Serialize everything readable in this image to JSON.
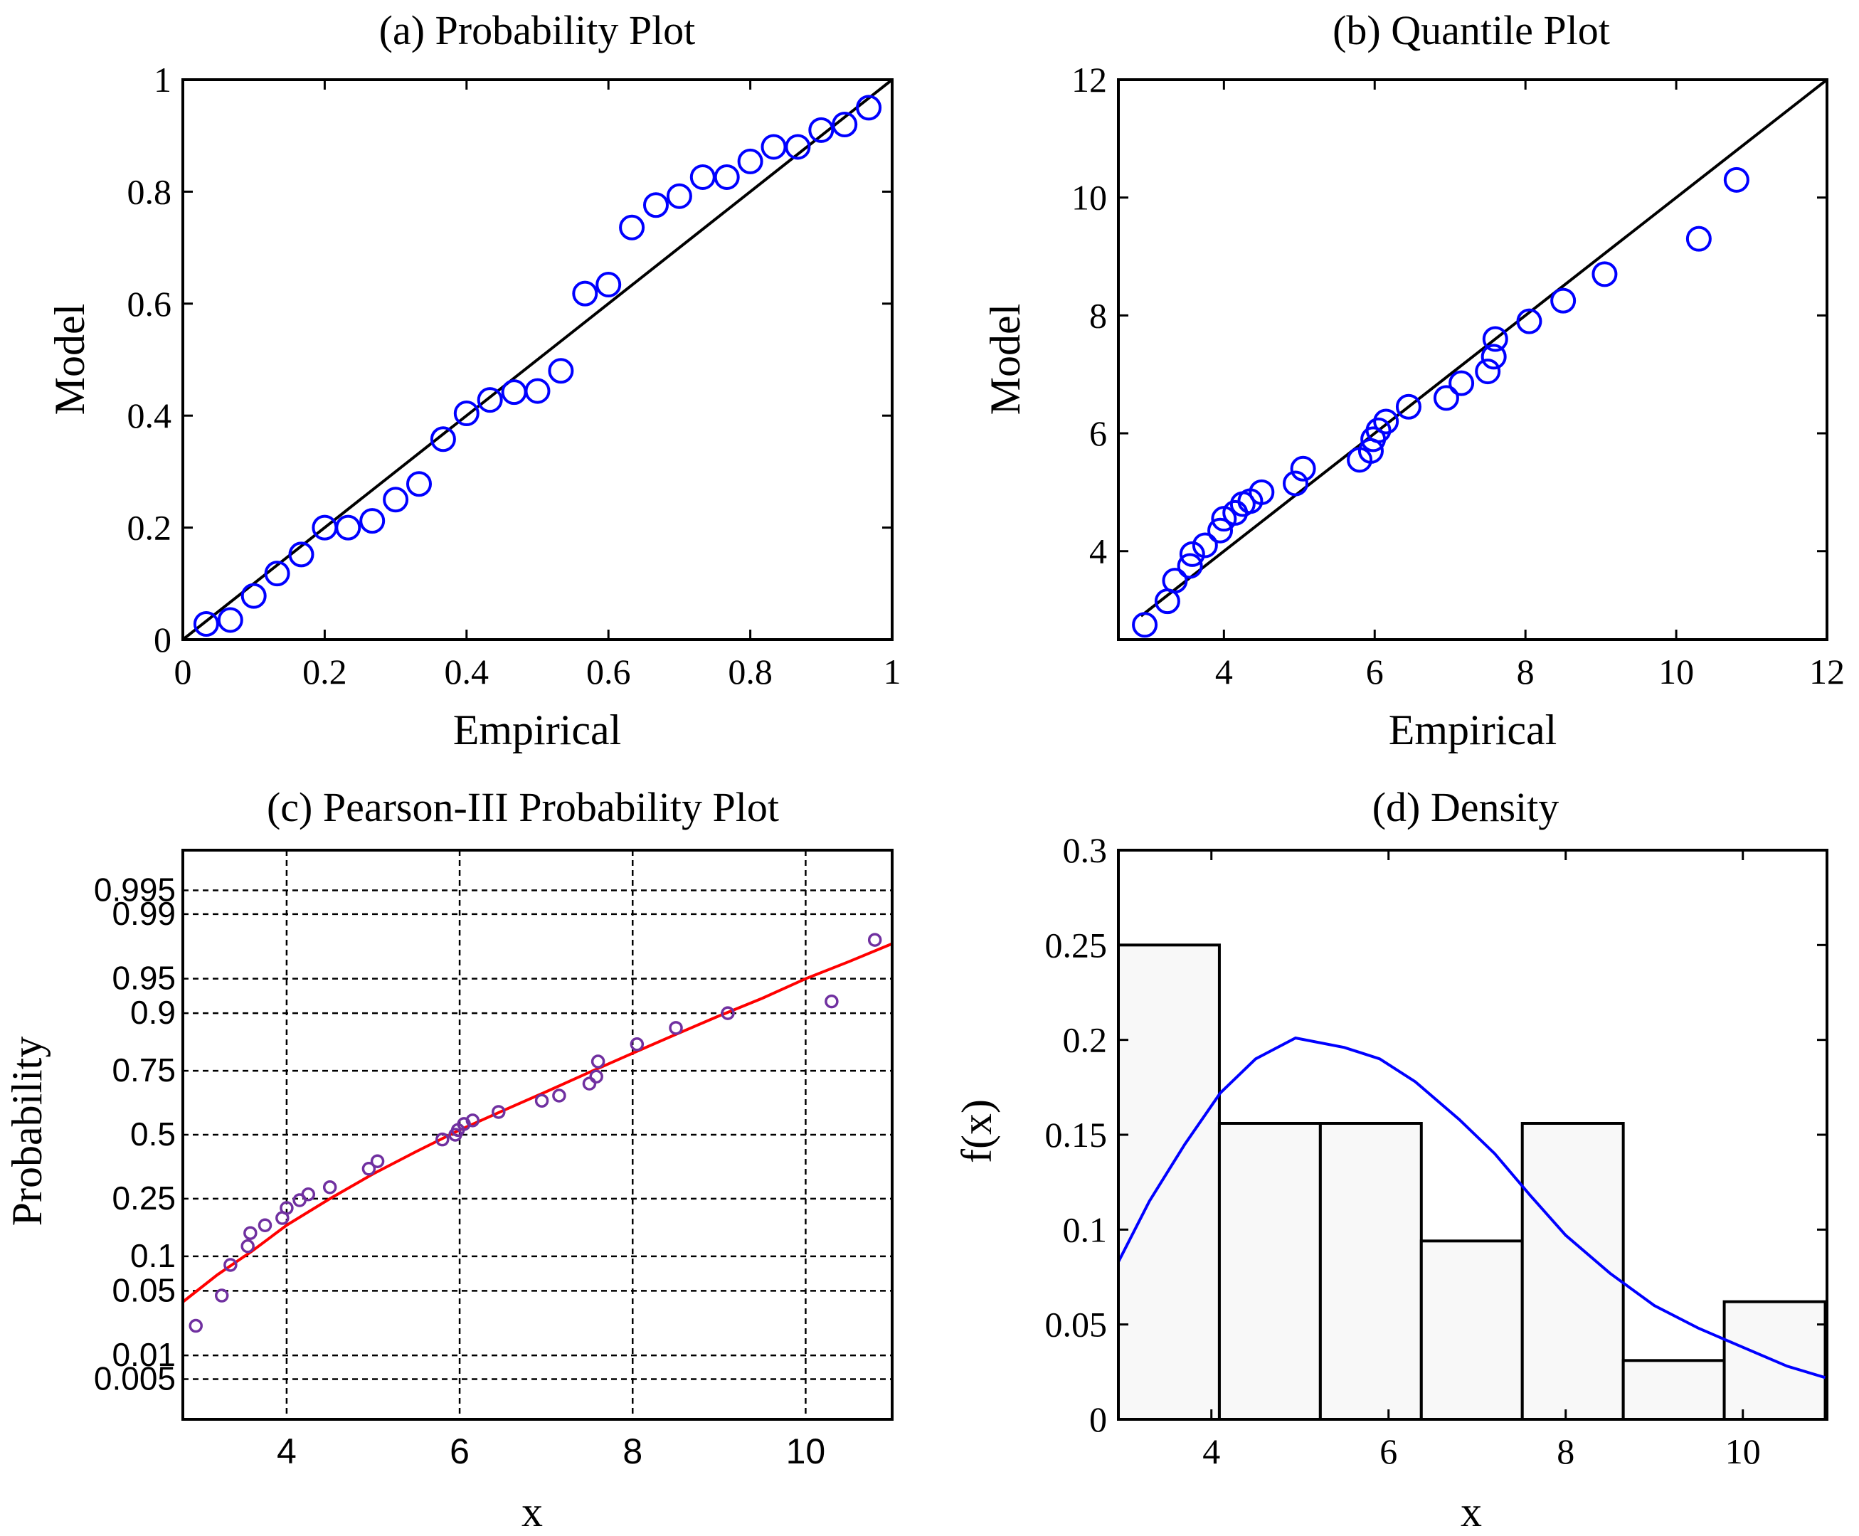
{
  "chart_data": [
    {
      "id": "a",
      "type": "scatter",
      "title": "(a) Probability Plot",
      "xlabel": "Empirical",
      "ylabel": "Model",
      "xlim": [
        0,
        1
      ],
      "ylim": [
        0,
        1
      ],
      "xticks": [
        0,
        0.2,
        0.4,
        0.6,
        0.8,
        1
      ],
      "xtick_labels": [
        "0",
        "0.2",
        "0.4",
        "0.6",
        "0.8",
        "1"
      ],
      "yticks": [
        0,
        0.2,
        0.4,
        0.6,
        0.8,
        1
      ],
      "ytick_labels": [
        "0",
        "0.2",
        "0.4",
        "0.6",
        "0.8",
        "1"
      ],
      "reference_line": [
        [
          0,
          0
        ],
        [
          1,
          1
        ]
      ],
      "marker_color": "#0000ff",
      "points": [
        [
          0.033,
          0.028
        ],
        [
          0.067,
          0.035
        ],
        [
          0.1,
          0.078
        ],
        [
          0.133,
          0.118
        ],
        [
          0.167,
          0.152
        ],
        [
          0.2,
          0.2
        ],
        [
          0.233,
          0.2
        ],
        [
          0.267,
          0.212
        ],
        [
          0.3,
          0.25
        ],
        [
          0.333,
          0.278
        ],
        [
          0.367,
          0.358
        ],
        [
          0.4,
          0.404
        ],
        [
          0.433,
          0.428
        ],
        [
          0.467,
          0.442
        ],
        [
          0.5,
          0.444
        ],
        [
          0.533,
          0.48
        ],
        [
          0.567,
          0.618
        ],
        [
          0.6,
          0.634
        ],
        [
          0.633,
          0.736
        ],
        [
          0.667,
          0.776
        ],
        [
          0.7,
          0.792
        ],
        [
          0.733,
          0.826
        ],
        [
          0.767,
          0.826
        ],
        [
          0.8,
          0.854
        ],
        [
          0.833,
          0.88
        ],
        [
          0.867,
          0.88
        ],
        [
          0.9,
          0.91
        ],
        [
          0.933,
          0.92
        ],
        [
          0.967,
          0.95
        ]
      ]
    },
    {
      "id": "b",
      "type": "scatter",
      "title": "(b) Quantile Plot",
      "xlabel": "Empirical",
      "ylabel": "Model",
      "xlim": [
        2.6,
        12
      ],
      "ylim": [
        2.5,
        12
      ],
      "xticks": [
        4,
        6,
        8,
        10,
        12
      ],
      "xtick_labels": [
        "4",
        "6",
        "8",
        "10",
        "12"
      ],
      "yticks": [
        4,
        6,
        8,
        10,
        12
      ],
      "ytick_labels": [
        "4",
        "6",
        "8",
        "10",
        "12"
      ],
      "reference_line": [
        [
          2.9,
          2.9
        ],
        [
          12,
          12
        ]
      ],
      "marker_color": "#0000ff",
      "points": [
        [
          2.95,
          2.75
        ],
        [
          3.25,
          3.15
        ],
        [
          3.35,
          3.5
        ],
        [
          3.55,
          3.75
        ],
        [
          3.58,
          3.95
        ],
        [
          3.75,
          4.1
        ],
        [
          3.95,
          4.35
        ],
        [
          4.0,
          4.55
        ],
        [
          4.15,
          4.65
        ],
        [
          4.25,
          4.8
        ],
        [
          4.35,
          4.85
        ],
        [
          4.5,
          5.0
        ],
        [
          4.95,
          5.15
        ],
        [
          5.05,
          5.4
        ],
        [
          5.8,
          5.55
        ],
        [
          5.95,
          5.7
        ],
        [
          5.98,
          5.9
        ],
        [
          6.05,
          6.05
        ],
        [
          6.15,
          6.2
        ],
        [
          6.45,
          6.45
        ],
        [
          6.95,
          6.6
        ],
        [
          7.15,
          6.85
        ],
        [
          7.5,
          7.05
        ],
        [
          7.58,
          7.3
        ],
        [
          7.6,
          7.6
        ],
        [
          8.05,
          7.9
        ],
        [
          8.5,
          8.25
        ],
        [
          9.05,
          8.7
        ],
        [
          10.3,
          9.3
        ],
        [
          10.8,
          10.3
        ]
      ]
    },
    {
      "id": "c",
      "type": "scatter",
      "title": "(c) Pearson-III Probability Plot",
      "xlabel": "x",
      "ylabel": "Probability",
      "xlim": [
        2.8,
        11
      ],
      "ylim_z": [
        -3.0,
        3.0
      ],
      "xticks": [
        4,
        6,
        8,
        10
      ],
      "xtick_labels": [
        "4",
        "6",
        "8",
        "10"
      ],
      "yticks_probability": [
        0.005,
        0.01,
        0.05,
        0.1,
        0.25,
        0.5,
        0.75,
        0.9,
        0.95,
        0.99,
        0.995
      ],
      "ytick_labels": [
        "0.005",
        "0.01",
        "0.05",
        "0.1",
        "0.25",
        "0.5",
        "0.75",
        "0.9",
        "0.95",
        "0.99",
        "0.995"
      ],
      "grid": true,
      "marker_color": "#7030a0",
      "curve_color": "#ff0000",
      "fitted_curve": [
        [
          2.8,
          0.039
        ],
        [
          3.2,
          0.07
        ],
        [
          3.6,
          0.11
        ],
        [
          4.0,
          0.17
        ],
        [
          4.5,
          0.25
        ],
        [
          5.0,
          0.34
        ],
        [
          5.5,
          0.43
        ],
        [
          6.0,
          0.52
        ],
        [
          6.5,
          0.6
        ],
        [
          7.0,
          0.675
        ],
        [
          7.5,
          0.745
        ],
        [
          8.0,
          0.805
        ],
        [
          8.5,
          0.855
        ],
        [
          9.0,
          0.895
        ],
        [
          9.5,
          0.925
        ],
        [
          10.0,
          0.95
        ],
        [
          10.5,
          0.966
        ],
        [
          11.0,
          0.978
        ]
      ],
      "points": [
        [
          2.95,
          0.022
        ],
        [
          3.25,
          0.045
        ],
        [
          3.35,
          0.085
        ],
        [
          3.55,
          0.12
        ],
        [
          3.58,
          0.15
        ],
        [
          3.75,
          0.17
        ],
        [
          3.95,
          0.19
        ],
        [
          4.0,
          0.22
        ],
        [
          4.15,
          0.245
        ],
        [
          4.25,
          0.265
        ],
        [
          4.5,
          0.29
        ],
        [
          4.95,
          0.36
        ],
        [
          5.05,
          0.39
        ],
        [
          5.8,
          0.48
        ],
        [
          5.95,
          0.5
        ],
        [
          5.98,
          0.52
        ],
        [
          6.05,
          0.545
        ],
        [
          6.15,
          0.56
        ],
        [
          6.45,
          0.595
        ],
        [
          6.95,
          0.64
        ],
        [
          7.15,
          0.66
        ],
        [
          7.5,
          0.705
        ],
        [
          7.58,
          0.73
        ],
        [
          7.6,
          0.78
        ],
        [
          8.05,
          0.83
        ],
        [
          8.5,
          0.87
        ],
        [
          9.1,
          0.9
        ],
        [
          10.3,
          0.92
        ],
        [
          10.8,
          0.98
        ]
      ]
    },
    {
      "id": "d",
      "type": "bar",
      "title": "(d) Density",
      "xlabel": "x",
      "ylabel": "f(x)",
      "xlim": [
        2.95,
        10.95
      ],
      "ylim": [
        0,
        0.3
      ],
      "xticks": [
        4,
        6,
        8,
        10
      ],
      "xtick_labels": [
        "4",
        "6",
        "8",
        "10"
      ],
      "yticks": [
        0,
        0.05,
        0.1,
        0.15,
        0.2,
        0.25,
        0.3
      ],
      "ytick_labels": [
        "0",
        "0.05",
        "0.1",
        "0.15",
        "0.2",
        "0.25",
        "0.3"
      ],
      "bin_edges": [
        2.95,
        4.09,
        5.23,
        6.37,
        7.51,
        8.65,
        9.79,
        10.93
      ],
      "values": [
        0.25,
        0.156,
        0.156,
        0.094,
        0.156,
        0.031,
        0.062
      ],
      "bar_fill": "#f8f8f8",
      "curve_color": "#0000ff",
      "density_curve": [
        [
          2.95,
          0.083
        ],
        [
          3.3,
          0.115
        ],
        [
          3.7,
          0.145
        ],
        [
          4.1,
          0.172
        ],
        [
          4.5,
          0.19
        ],
        [
          4.95,
          0.201
        ],
        [
          5.5,
          0.196
        ],
        [
          5.9,
          0.19
        ],
        [
          6.3,
          0.178
        ],
        [
          6.8,
          0.158
        ],
        [
          7.2,
          0.14
        ],
        [
          7.6,
          0.118
        ],
        [
          8.0,
          0.097
        ],
        [
          8.5,
          0.077
        ],
        [
          9.0,
          0.06
        ],
        [
          9.5,
          0.048
        ],
        [
          10.0,
          0.038
        ],
        [
          10.5,
          0.028
        ],
        [
          10.93,
          0.022
        ]
      ]
    }
  ]
}
